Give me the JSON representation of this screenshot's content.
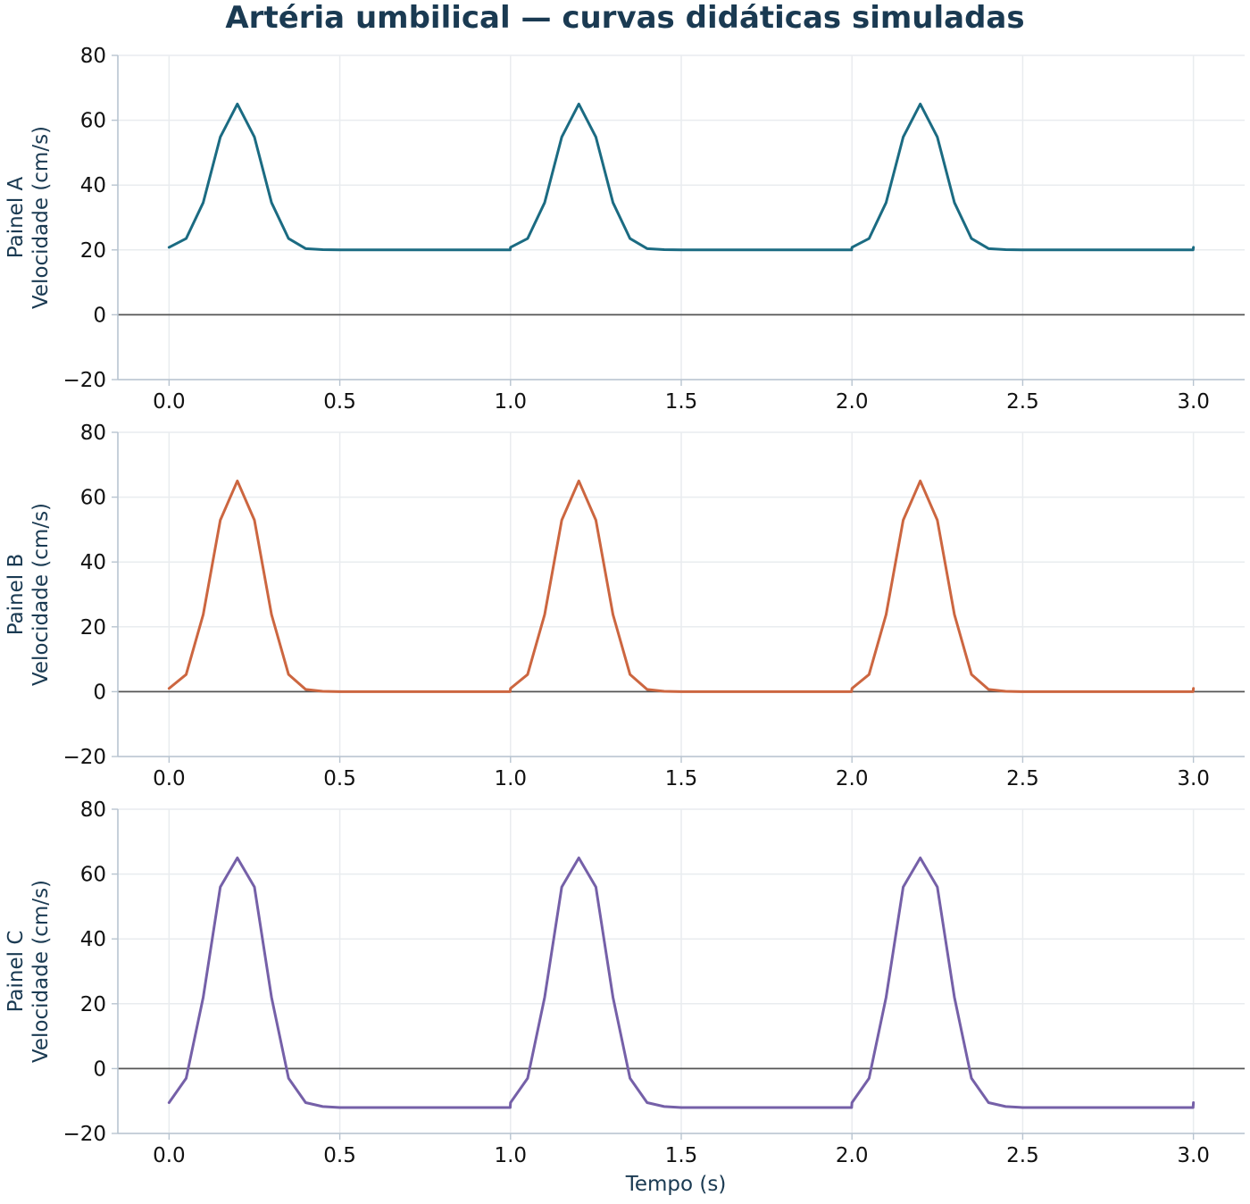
{
  "title": "Artéria umbilical — curvas didáticas simuladas",
  "colors": {
    "title": "#1a3a52",
    "axis_label": "#1a3a52",
    "tick_label": "#111111",
    "spine": "#b8c4d0",
    "grid": "#e9ecef",
    "zero_line": "#555555"
  },
  "chart_data": [
    {
      "type": "line",
      "panel_label": "Painel A",
      "ylabel": "Velocidade (cm/s)",
      "xlabel": "",
      "xlim": [
        -0.15,
        3.15
      ],
      "ylim": [
        -20,
        80
      ],
      "xticks": [
        0.0,
        0.5,
        1.0,
        1.5,
        2.0,
        2.5,
        3.0
      ],
      "xtick_labels": [
        "0.0",
        "0.5",
        "1.0",
        "1.5",
        "2.0",
        "2.5",
        "3.0"
      ],
      "yticks": [
        -20,
        0,
        20,
        40,
        60,
        80
      ],
      "ytick_labels": [
        "−20",
        "0",
        "20",
        "40",
        "60",
        "80"
      ],
      "grid": true,
      "zero_line": true,
      "series": [
        {
          "color": "#1b6b82",
          "x": [
            0.0,
            0.05,
            0.1,
            0.15,
            0.2,
            0.25,
            0.3,
            0.35,
            0.4,
            0.45,
            0.5,
            0.6,
            0.7,
            0.8,
            0.9,
            0.999,
            1.0,
            1.05,
            1.1,
            1.15,
            1.2,
            1.25,
            1.3,
            1.35,
            1.4,
            1.45,
            1.5,
            1.6,
            1.7,
            1.8,
            1.9,
            1.999,
            2.0,
            2.05,
            2.1,
            2.15,
            2.2,
            2.25,
            2.3,
            2.35,
            2.4,
            2.45,
            2.5,
            2.6,
            2.7,
            2.8,
            2.9,
            2.999,
            3.0
          ],
          "y": [
            20.8,
            23.5,
            34.6,
            54.8,
            65.0,
            54.8,
            34.6,
            23.5,
            20.4,
            20.1,
            20.0,
            20.0,
            20.0,
            20.0,
            20.0,
            20.0,
            20.8,
            23.5,
            34.6,
            54.8,
            65.0,
            54.8,
            34.6,
            23.5,
            20.4,
            20.1,
            20.0,
            20.0,
            20.0,
            20.0,
            20.0,
            20.0,
            20.8,
            23.5,
            34.6,
            54.8,
            65.0,
            54.8,
            34.6,
            23.5,
            20.4,
            20.1,
            20.0,
            20.0,
            20.0,
            20.0,
            20.0,
            20.0,
            20.8
          ]
        }
      ]
    },
    {
      "type": "line",
      "panel_label": "Painel B",
      "ylabel": "Velocidade (cm/s)",
      "xlabel": "",
      "xlim": [
        -0.15,
        3.15
      ],
      "ylim": [
        -20,
        80
      ],
      "xticks": [
        0.0,
        0.5,
        1.0,
        1.5,
        2.0,
        2.5,
        3.0
      ],
      "xtick_labels": [
        "0.0",
        "0.5",
        "1.0",
        "1.5",
        "2.0",
        "2.5",
        "3.0"
      ],
      "yticks": [
        -20,
        0,
        20,
        40,
        60,
        80
      ],
      "ytick_labels": [
        "−20",
        "0",
        "20",
        "40",
        "60",
        "80"
      ],
      "grid": true,
      "zero_line": true,
      "series": [
        {
          "color": "#cc6640",
          "x": [
            0.0,
            0.05,
            0.1,
            0.15,
            0.2,
            0.25,
            0.3,
            0.35,
            0.4,
            0.45,
            0.5,
            0.6,
            0.7,
            0.8,
            0.9,
            0.999,
            1.0,
            1.05,
            1.1,
            1.15,
            1.2,
            1.25,
            1.3,
            1.35,
            1.4,
            1.45,
            1.5,
            1.6,
            1.7,
            1.8,
            1.9,
            1.999,
            2.0,
            2.05,
            2.1,
            2.15,
            2.2,
            2.25,
            2.3,
            2.35,
            2.4,
            2.45,
            2.5,
            2.6,
            2.7,
            2.8,
            2.9,
            2.999,
            3.0
          ],
          "y": [
            1.0,
            5.3,
            23.8,
            52.9,
            65.0,
            52.9,
            23.8,
            5.3,
            0.7,
            0.1,
            0.0,
            0.0,
            0.0,
            0.0,
            0.0,
            0.0,
            1.0,
            5.3,
            23.8,
            52.9,
            65.0,
            52.9,
            23.8,
            5.3,
            0.7,
            0.1,
            0.0,
            0.0,
            0.0,
            0.0,
            0.0,
            0.0,
            1.0,
            5.3,
            23.8,
            52.9,
            65.0,
            52.9,
            23.8,
            5.3,
            0.7,
            0.1,
            0.0,
            0.0,
            0.0,
            0.0,
            0.0,
            0.0,
            1.0
          ]
        }
      ]
    },
    {
      "type": "line",
      "panel_label": "Painel C",
      "ylabel": "Velocidade (cm/s)",
      "xlabel": "Tempo (s)",
      "xlim": [
        -0.15,
        3.15
      ],
      "ylim": [
        -20,
        80
      ],
      "xticks": [
        0.0,
        0.5,
        1.0,
        1.5,
        2.0,
        2.5,
        3.0
      ],
      "xtick_labels": [
        "0.0",
        "0.5",
        "1.0",
        "1.5",
        "2.0",
        "2.5",
        "3.0"
      ],
      "yticks": [
        -20,
        0,
        20,
        40,
        60,
        80
      ],
      "ytick_labels": [
        "−20",
        "0",
        "20",
        "40",
        "60",
        "80"
      ],
      "grid": true,
      "zero_line": true,
      "series": [
        {
          "color": "#7560a8",
          "x": [
            0.0,
            0.05,
            0.1,
            0.15,
            0.2,
            0.25,
            0.3,
            0.35,
            0.4,
            0.45,
            0.5,
            0.6,
            0.7,
            0.8,
            0.9,
            0.999,
            1.0,
            1.05,
            1.1,
            1.15,
            1.2,
            1.25,
            1.3,
            1.35,
            1.4,
            1.45,
            1.5,
            1.6,
            1.7,
            1.8,
            1.9,
            1.999,
            2.0,
            2.05,
            2.1,
            2.15,
            2.2,
            2.25,
            2.3,
            2.35,
            2.4,
            2.45,
            2.5,
            2.6,
            2.7,
            2.8,
            2.9,
            2.999,
            3.0
          ],
          "y": [
            -10.5,
            -3.0,
            22.0,
            56.0,
            65.0,
            56.0,
            22.0,
            -3.0,
            -10.5,
            -11.7,
            -12.0,
            -12.0,
            -12.0,
            -12.0,
            -12.0,
            -12.0,
            -10.5,
            -3.0,
            22.0,
            56.0,
            65.0,
            56.0,
            22.0,
            -3.0,
            -10.5,
            -11.7,
            -12.0,
            -12.0,
            -12.0,
            -12.0,
            -12.0,
            -12.0,
            -10.5,
            -3.0,
            22.0,
            56.0,
            65.0,
            56.0,
            22.0,
            -3.0,
            -10.5,
            -11.7,
            -12.0,
            -12.0,
            -12.0,
            -12.0,
            -12.0,
            -12.0,
            -10.5
          ]
        }
      ]
    }
  ]
}
